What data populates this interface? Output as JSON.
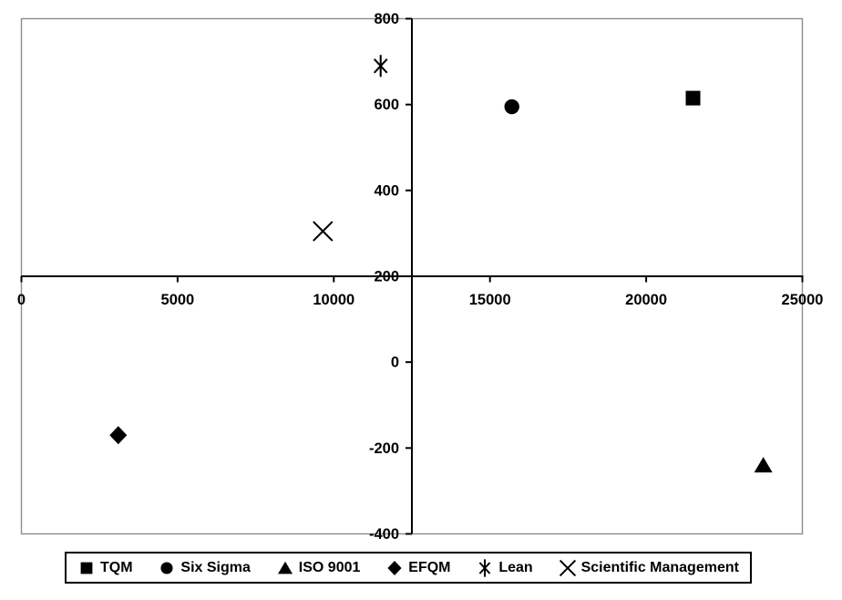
{
  "chart": {
    "colors": {
      "background": "#ffffff",
      "plot_border": "#8c8c8c",
      "axis": "#000000",
      "marker": "#000000",
      "text": "#000000",
      "legend_border": "#000000"
    }
  },
  "chart_data": {
    "type": "scatter",
    "title": "",
    "xlabel": "",
    "ylabel": "",
    "grid": false,
    "legend_position": "bottom",
    "xlim": [
      0,
      25000
    ],
    "ylim": [
      -400,
      800
    ],
    "x_axis_cross_y": 200,
    "y_axis_cross_x": 12500,
    "x_ticks": [
      0,
      5000,
      10000,
      15000,
      20000,
      25000
    ],
    "x_tick_labels": [
      "0",
      "5000",
      "10000",
      "15000",
      "20000",
      "25000"
    ],
    "y_ticks": [
      800,
      600,
      400,
      200,
      0,
      -200,
      -400
    ],
    "y_tick_labels": [
      "800",
      "600",
      "400",
      "200",
      "0",
      "-200",
      "-400"
    ],
    "series": [
      {
        "name": "TQM",
        "marker": "square",
        "points": [
          [
            21500,
            615
          ]
        ]
      },
      {
        "name": "Six Sigma",
        "marker": "circle",
        "points": [
          [
            15700,
            595
          ]
        ]
      },
      {
        "name": "ISO 9001",
        "marker": "triangle",
        "points": [
          [
            23750,
            -240
          ]
        ]
      },
      {
        "name": "EFQM",
        "marker": "diamond",
        "points": [
          [
            3100,
            -170
          ]
        ]
      },
      {
        "name": "Lean",
        "marker": "asterisk",
        "points": [
          [
            11500,
            690
          ]
        ]
      },
      {
        "name": "Scientific Management",
        "marker": "x",
        "points": [
          [
            9650,
            305
          ]
        ]
      }
    ]
  }
}
